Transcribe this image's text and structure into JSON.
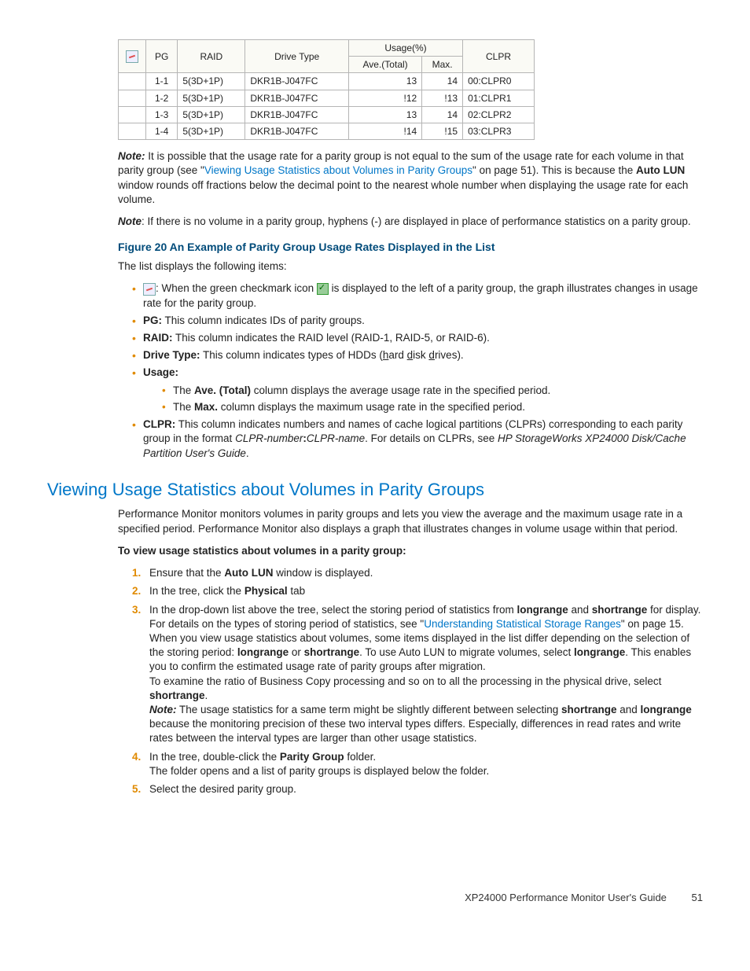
{
  "table": {
    "headers": {
      "pg": "PG",
      "raid": "RAID",
      "drive_type": "Drive Type",
      "usage_group": "Usage(%)",
      "usage_ave": "Ave.(Total)",
      "usage_max": "Max.",
      "clpr": "CLPR"
    },
    "rows": [
      {
        "pg": "1-1",
        "raid": "5(3D+1P)",
        "drive": "DKR1B-J047FC",
        "ave": "13",
        "max": "14",
        "clpr": "00:CLPR0"
      },
      {
        "pg": "1-2",
        "raid": "5(3D+1P)",
        "drive": "DKR1B-J047FC",
        "ave": "!12",
        "max": "!13",
        "clpr": "01:CLPR1"
      },
      {
        "pg": "1-3",
        "raid": "5(3D+1P)",
        "drive": "DKR1B-J047FC",
        "ave": "13",
        "max": "14",
        "clpr": "02:CLPR2"
      },
      {
        "pg": "1-4",
        "raid": "5(3D+1P)",
        "drive": "DKR1B-J047FC",
        "ave": "!14",
        "max": "!15",
        "clpr": "03:CLPR3"
      }
    ],
    "border_color": "#b5b5b5",
    "header_bg": "#fafaf5"
  },
  "note1": {
    "label": "Note:",
    "text_a": " It is possible that the usage rate for a parity group is not equal to the sum of the usage rate for each volume in that parity group (see \"",
    "link": "Viewing Usage Statistics about Volumes in Parity Groups",
    "text_b": "\" on page 51). This is because the ",
    "bold": "Auto LUN",
    "text_c": " window rounds off fractions below the decimal point to the nearest whole number when displaying the usage rate for each volume."
  },
  "note2": {
    "label": "Note",
    "text": ": If there is no volume in a parity group, hyphens (-) are displayed in place of performance statistics on a parity group."
  },
  "figure_caption": "Figure 20 An Example of Parity Group Usage Rates Displayed in the List",
  "list_intro": "The list displays the following items:",
  "bullets": {
    "icon": {
      "pre": ": When the green checkmark icon ",
      "post": " is displayed to the left of a parity group, the graph illustrates changes in usage rate for the parity group."
    },
    "pg": {
      "label": "PG:",
      "text": " This column indicates IDs of parity groups."
    },
    "raid": {
      "label": "RAID:",
      "text": " This column indicates the RAID level (RAID-1, RAID-5, or RAID-6)."
    },
    "drive": {
      "label": "Drive Type:",
      "pre": " This column indicates types of HDDs (",
      "h": "h",
      "ard": "ard ",
      "d": "d",
      "isk": "isk ",
      "dr": "d",
      "rives": "rives)."
    },
    "usage": {
      "label": "Usage:",
      "ave_pre": "The ",
      "ave_b": "Ave. (Total)",
      "ave_post": " column displays the average usage rate in the specified period.",
      "max_pre": "The ",
      "max_b": "Max.",
      "max_post": " column displays the maximum usage rate in the specified period."
    },
    "clpr": {
      "label": "CLPR:",
      "text_a": " This column indicates numbers and names of cache logical partitions (CLPRs) corresponding to each parity group in the format ",
      "fmt_a": "CLPR-number",
      "colon": ":",
      "fmt_b": "CLPR-name",
      "text_b": ". For details on CLPRs, see ",
      "guide": "HP StorageWorks XP24000 Disk/Cache Partition User's Guide",
      "dot": "."
    }
  },
  "section_heading": "Viewing Usage Statistics about Volumes in Parity Groups",
  "section_intro": "Performance Monitor monitors volumes in parity groups and lets you view the average and the maximum usage rate in a specified period. Performance Monitor also displays a graph that illustrates changes in volume usage within that period.",
  "procedure_title": "To view usage statistics about volumes in a parity group:",
  "steps": {
    "s1_a": "Ensure that the ",
    "s1_b": "Auto LUN",
    "s1_c": " window is displayed.",
    "s2_a": "In the tree, click the ",
    "s2_b": "Physical",
    "s2_c": " tab",
    "s3_a": "In the drop-down list above the tree, select the storing period of statistics from ",
    "s3_lr": "longrange",
    "s3_b": " and ",
    "s3_sr": "shortrange",
    "s3_c": " for display.",
    "s3_d": "For details on the types of storing period of statistics, see \"",
    "s3_link": "Understanding Statistical Storage Ranges",
    "s3_e": "\" on page 15.",
    "s3_f": "When you view usage statistics about volumes, some items displayed in the list differ depending on the selection of the storing period: ",
    "s3_g": " or ",
    "s3_h": ". To use Auto LUN to migrate volumes, select ",
    "s3_i": ". This enables you to confirm the estimated usage rate of parity groups after migration.",
    "s3_j": "To examine the ratio of Business Copy processing and so on to all the processing in the physical drive, select ",
    "s3_k": ".",
    "s3_note_lbl": "Note:",
    "s3_note_a": " The usage statistics for a same term might be slightly different between selecting ",
    "s3_note_b": " and ",
    "s3_note_c": " because the monitoring precision of these two interval types differs. Especially, differences in read rates and write rates between the interval types are larger than other usage statistics.",
    "s4_a": "In the tree, double-click the ",
    "s4_b": "Parity Group",
    "s4_c": " folder.",
    "s4_d": "The folder opens and a list of parity groups is displayed below the folder.",
    "s5": "Select the desired parity group."
  },
  "footer": {
    "title": "XP24000 Performance Monitor User's Guide",
    "page": "51"
  },
  "colors": {
    "link": "#0077c8",
    "accent": "#e08a00",
    "heading": "#004b7a"
  }
}
